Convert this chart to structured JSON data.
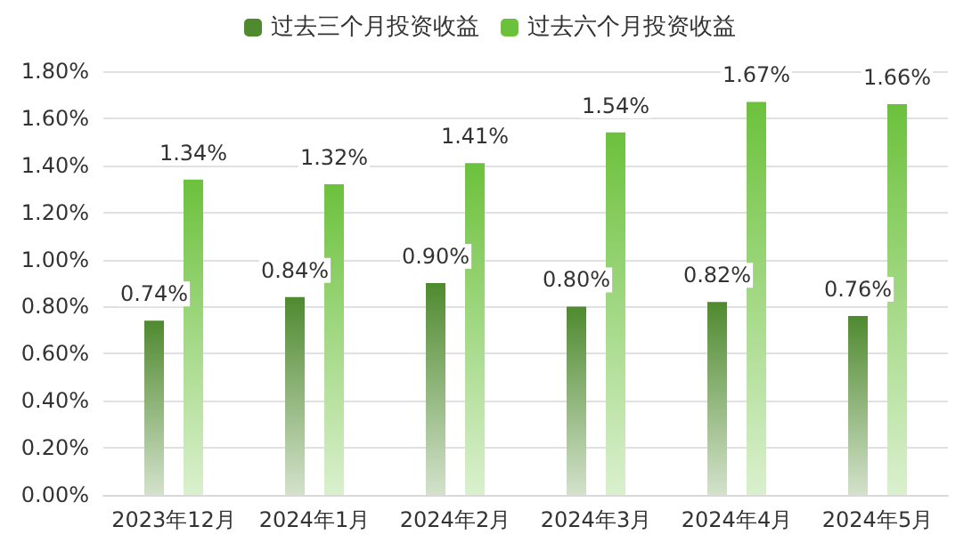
{
  "chart_data": {
    "type": "bar",
    "categories": [
      "2023年12月",
      "2024年1月",
      "2024年2月",
      "2024年3月",
      "2024年4月",
      "2024年5月"
    ],
    "series": [
      {
        "name": "过去三个月投资收益",
        "color": "#4f8a2f",
        "values": [
          0.74,
          0.84,
          0.9,
          0.8,
          0.82,
          0.76
        ],
        "value_labels": [
          "0.74%",
          "0.84%",
          "0.90%",
          "0.80%",
          "0.82%",
          "0.76%"
        ]
      },
      {
        "name": "过去六个月投资收益",
        "color": "#6cc13c",
        "values": [
          1.34,
          1.32,
          1.41,
          1.54,
          1.67,
          1.66
        ],
        "value_labels": [
          "1.34%",
          "1.32%",
          "1.41%",
          "1.54%",
          "1.67%",
          "1.66%"
        ]
      }
    ],
    "ylim": [
      0,
      1.8
    ],
    "yticks": [
      {
        "value": 0,
        "label": "0.00%"
      },
      {
        "value": 0.2,
        "label": "0.20%"
      },
      {
        "value": 0.4,
        "label": "0.40%"
      },
      {
        "value": 0.6,
        "label": "0.60%"
      },
      {
        "value": 0.8,
        "label": "0.80%"
      },
      {
        "value": 1.0,
        "label": "1.00%"
      },
      {
        "value": 1.2,
        "label": "1.20%"
      },
      {
        "value": 1.4,
        "label": "1.40%"
      },
      {
        "value": 1.6,
        "label": "1.60%"
      },
      {
        "value": 1.8,
        "label": "1.80%"
      }
    ],
    "grid": "y",
    "legend": "top"
  }
}
